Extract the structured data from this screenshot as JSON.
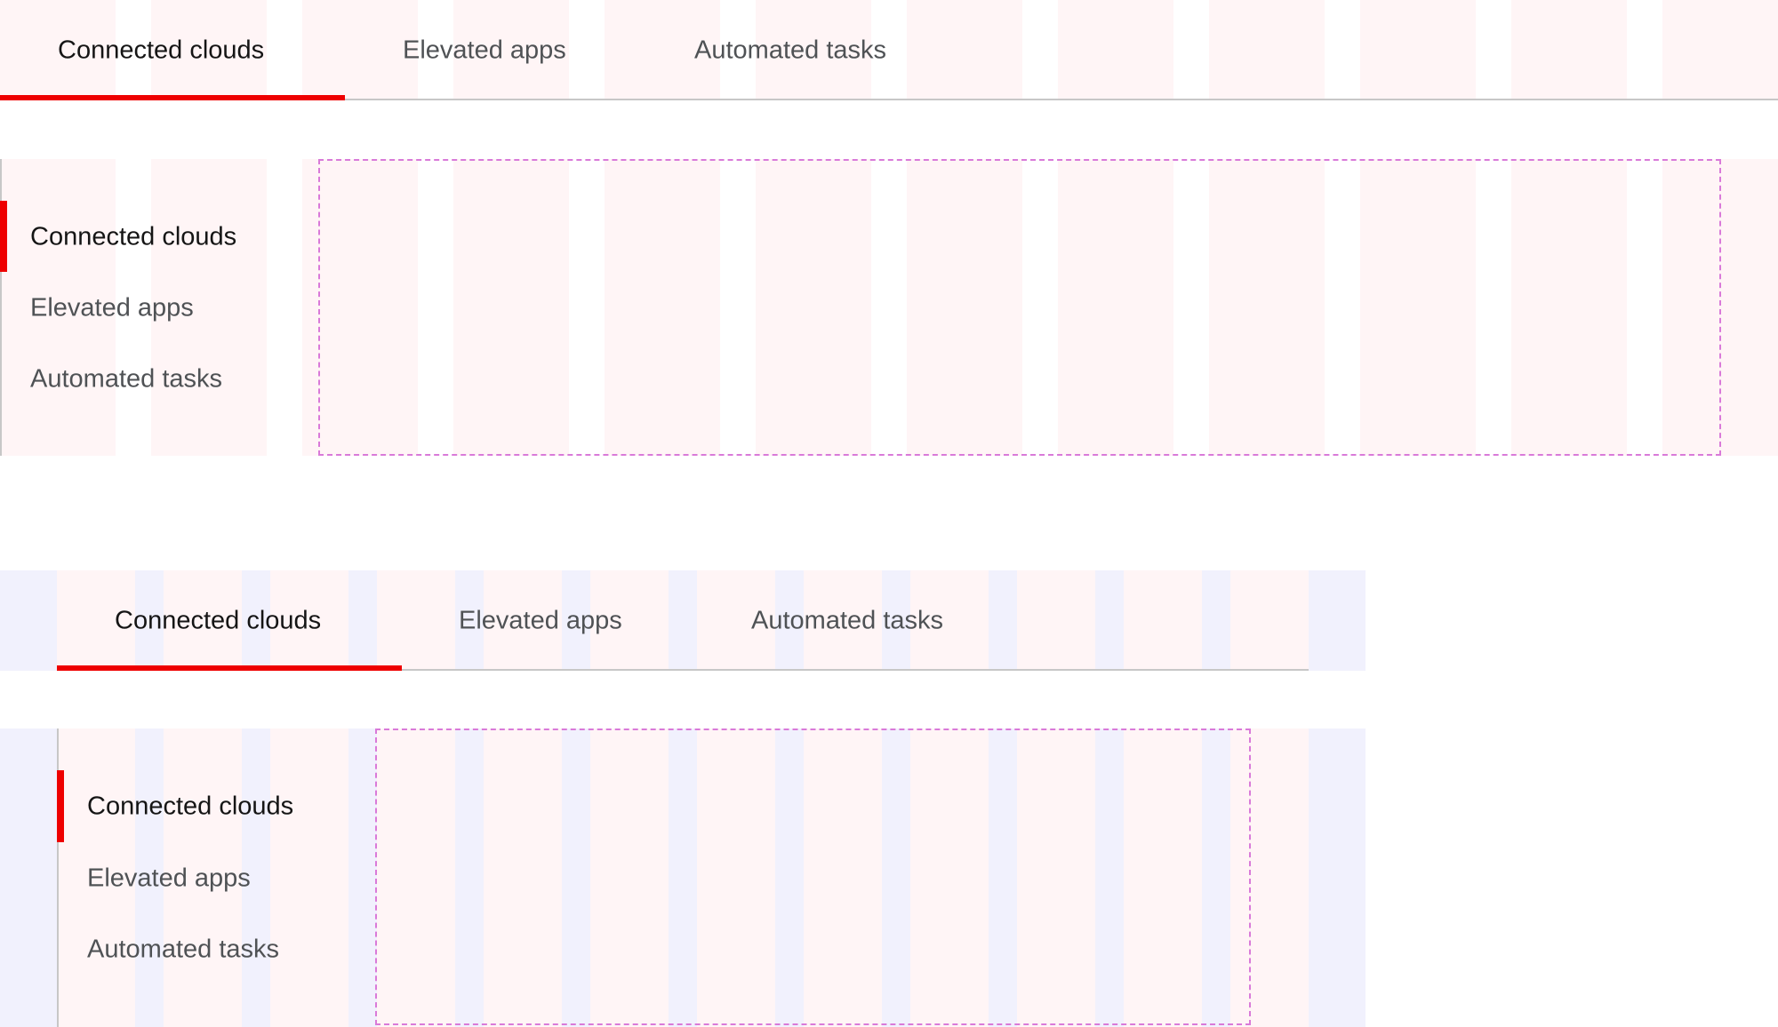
{
  "colors": {
    "accent": "#ee0000",
    "grid_column": "#fff5f6",
    "inset_margin": "#f1f1fd",
    "content_outline": "#d97ad9"
  },
  "horizontal_tabs": {
    "items": [
      {
        "label": "Connected clouds",
        "active": true
      },
      {
        "label": "Elevated apps",
        "active": false
      },
      {
        "label": "Automated tasks",
        "active": false
      }
    ]
  },
  "vertical_tabs": {
    "items": [
      {
        "label": "Connected clouds",
        "active": true
      },
      {
        "label": "Elevated apps",
        "active": false
      },
      {
        "label": "Automated tasks",
        "active": false
      }
    ]
  },
  "inset_horizontal_tabs": {
    "items": [
      {
        "label": "Connected clouds",
        "active": true
      },
      {
        "label": "Elevated apps",
        "active": false
      },
      {
        "label": "Automated tasks",
        "active": false
      }
    ]
  },
  "inset_vertical_tabs": {
    "items": [
      {
        "label": "Connected clouds",
        "active": true
      },
      {
        "label": "Elevated apps",
        "active": false
      },
      {
        "label": "Automated tasks",
        "active": false
      }
    ]
  }
}
